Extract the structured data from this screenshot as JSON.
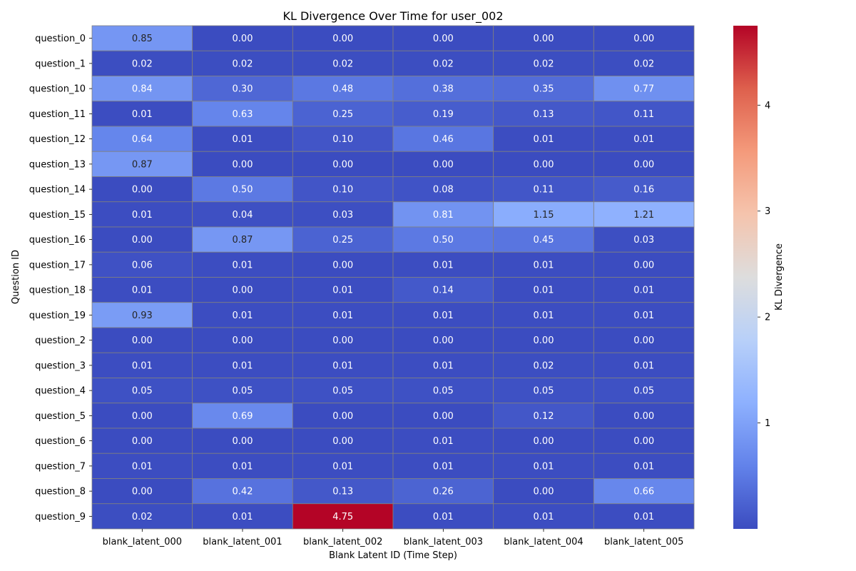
{
  "chart_data": {
    "type": "heatmap",
    "title": "KL Divergence Over Time for user_002",
    "xlabel": "Blank Latent ID (Time Step)",
    "ylabel": "Question ID",
    "colorbar_label": "KL Divergence",
    "colormap": "coolwarm",
    "vrange": [
      0.0,
      4.75
    ],
    "colorbar_ticks": [
      1,
      2,
      3,
      4
    ],
    "cell_border_color": "#808080",
    "x_categories": [
      "blank_latent_000",
      "blank_latent_001",
      "blank_latent_002",
      "blank_latent_003",
      "blank_latent_004",
      "blank_latent_005"
    ],
    "y_categories": [
      "question_0",
      "question_1",
      "question_10",
      "question_11",
      "question_12",
      "question_13",
      "question_14",
      "question_15",
      "question_16",
      "question_17",
      "question_18",
      "question_19",
      "question_2",
      "question_3",
      "question_4",
      "question_5",
      "question_6",
      "question_7",
      "question_8",
      "question_9"
    ],
    "values": [
      [
        0.85,
        0.0,
        0.0,
        0.0,
        0.0,
        0.0
      ],
      [
        0.02,
        0.02,
        0.02,
        0.02,
        0.02,
        0.02
      ],
      [
        0.84,
        0.3,
        0.48,
        0.38,
        0.35,
        0.77
      ],
      [
        0.01,
        0.63,
        0.25,
        0.19,
        0.13,
        0.11
      ],
      [
        0.64,
        0.01,
        0.1,
        0.46,
        0.01,
        0.01
      ],
      [
        0.87,
        0.0,
        0.0,
        0.0,
        0.0,
        0.0
      ],
      [
        0.0,
        0.5,
        0.1,
        0.08,
        0.11,
        0.16
      ],
      [
        0.01,
        0.04,
        0.03,
        0.81,
        1.15,
        1.21
      ],
      [
        0.0,
        0.87,
        0.25,
        0.5,
        0.45,
        0.03
      ],
      [
        0.06,
        0.01,
        0.0,
        0.01,
        0.01,
        0.0
      ],
      [
        0.01,
        0.0,
        0.01,
        0.14,
        0.01,
        0.01
      ],
      [
        0.93,
        0.01,
        0.01,
        0.01,
        0.01,
        0.01
      ],
      [
        0.0,
        0.0,
        0.0,
        0.0,
        0.0,
        0.0
      ],
      [
        0.01,
        0.01,
        0.01,
        0.01,
        0.02,
        0.01
      ],
      [
        0.05,
        0.05,
        0.05,
        0.05,
        0.05,
        0.05
      ],
      [
        0.0,
        0.69,
        0.0,
        0.0,
        0.12,
        0.0
      ],
      [
        0.0,
        0.0,
        0.0,
        0.01,
        0.0,
        0.0
      ],
      [
        0.01,
        0.01,
        0.01,
        0.01,
        0.01,
        0.01
      ],
      [
        0.0,
        0.42,
        0.13,
        0.26,
        0.0,
        0.66
      ],
      [
        0.02,
        0.01,
        4.75,
        0.01,
        0.01,
        0.01
      ]
    ]
  }
}
